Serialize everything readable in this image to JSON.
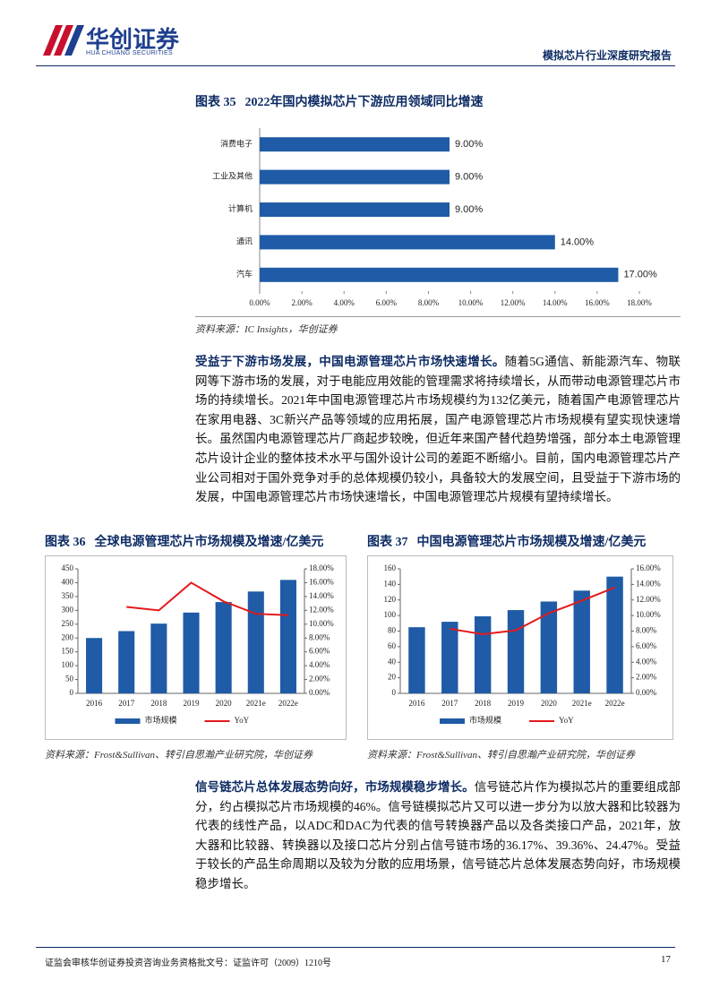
{
  "header": {
    "logo_name": "华创证券",
    "logo_subtitle": "HUA CHUANG SECURITIES",
    "report_title": "模拟芯片行业深度研究报告"
  },
  "chart_data": [
    {
      "type": "barh",
      "figure_label": "图表 35",
      "title": "2022年国内模拟芯片下游应用领域同比增速",
      "categories": [
        "消费电子",
        "工业及其他",
        "计算机",
        "通讯",
        "汽车"
      ],
      "values": [
        9,
        9,
        9,
        14,
        17
      ],
      "value_labels": [
        "9.00%",
        "9.00%",
        "9.00%",
        "14.00%",
        "17.00%"
      ],
      "color": "#1f5ba6",
      "xlim": [
        0,
        18
      ],
      "xticks": [
        {
          "value": 0,
          "label": "0.00%"
        },
        {
          "value": 2,
          "label": "2.00%"
        },
        {
          "value": 4,
          "label": "4.00%"
        },
        {
          "value": 6,
          "label": "6.00%"
        },
        {
          "value": 8,
          "label": "8.00%"
        },
        {
          "value": 10,
          "label": "10.00%"
        },
        {
          "value": 12,
          "label": "12.00%"
        },
        {
          "value": 14,
          "label": "14.00%"
        },
        {
          "value": 16,
          "label": "16.00%"
        },
        {
          "value": 18,
          "label": "18.00%"
        }
      ],
      "source": "资料来源：IC Insights，华创证券"
    },
    {
      "type": "combo",
      "figure_label": "图表 36",
      "title": "全球电源管理芯片市场规模及增速/亿美元",
      "categories": [
        "2016",
        "2017",
        "2018",
        "2019",
        "2020",
        "2021e",
        "2022e"
      ],
      "series": [
        {
          "name": "市场规模",
          "color": "#1f5ba6",
          "values": [
            200,
            225,
            252,
            292,
            330,
            368,
            410
          ]
        },
        {
          "name": "YoY",
          "color": "#e31a1c",
          "axis": "y2",
          "values": [
            null,
            12.5,
            12,
            16,
            13.3,
            11.5,
            11.3
          ]
        }
      ],
      "ylim": [
        0,
        450
      ],
      "yticks": [
        0,
        50,
        100,
        150,
        200,
        250,
        300,
        350,
        400,
        450
      ],
      "y2lim": [
        0,
        18
      ],
      "y2ticks": [
        {
          "value": 0,
          "label": "0.00%"
        },
        {
          "value": 2,
          "label": "2.00%"
        },
        {
          "value": 4,
          "label": "4.00%"
        },
        {
          "value": 6,
          "label": "6.00%"
        },
        {
          "value": 8,
          "label": "8.00%"
        },
        {
          "value": 10,
          "label": "10.00%"
        },
        {
          "value": 12,
          "label": "12.00%"
        },
        {
          "value": 14,
          "label": "14.00%"
        },
        {
          "value": 16,
          "label": "16.00%"
        },
        {
          "value": 18,
          "label": "18.00%"
        }
      ],
      "source": "资料来源：Frost&Sullivan、转引自思瀚产业研究院，华创证券"
    },
    {
      "type": "combo",
      "figure_label": "图表 37",
      "title": "中国电源管理芯片市场规模及增速/亿美元",
      "categories": [
        "2016",
        "2017",
        "2018",
        "2019",
        "2020",
        "2021e",
        "2022e"
      ],
      "series": [
        {
          "name": "市场规模",
          "color": "#1f5ba6",
          "values": [
            85,
            92,
            99,
            107,
            118,
            132,
            150
          ]
        },
        {
          "name": "YoY",
          "color": "#e31a1c",
          "axis": "y2",
          "values": [
            null,
            8.3,
            7.6,
            8.1,
            10.3,
            11.9,
            13.6
          ]
        }
      ],
      "ylim": [
        0,
        160
      ],
      "yticks": [
        0,
        20,
        40,
        60,
        80,
        100,
        120,
        140,
        160
      ],
      "y2lim": [
        0,
        16
      ],
      "y2ticks": [
        {
          "value": 0,
          "label": "0.00%"
        },
        {
          "value": 2,
          "label": "2.00%"
        },
        {
          "value": 4,
          "label": "4.00%"
        },
        {
          "value": 6,
          "label": "6.00%"
        },
        {
          "value": 8,
          "label": "8.00%"
        },
        {
          "value": 10,
          "label": "10.00%"
        },
        {
          "value": 12,
          "label": "12.00%"
        },
        {
          "value": 14,
          "label": "14.00%"
        },
        {
          "value": 16,
          "label": "16.00%"
        }
      ],
      "source": "资料来源：Frost&Sullivan、转引自思瀚产业研究院，华创证券"
    }
  ],
  "paragraphs": [
    {
      "lead": "受益于下游市场发展，中国电源管理芯片市场快速增长。",
      "text": "随着5G通信、新能源汽车、物联网等下游市场的发展，对于电能应用效能的管理需求将持续增长，从而带动电源管理芯片市场的持续增长。2021年中国电源管理芯片市场规模约为132亿美元，随着国产电源管理芯片在家用电器、3C新兴产品等领域的应用拓展，国产电源管理芯片市场规模有望实现快速增长。虽然国内电源管理芯片厂商起步较晚，但近年来国产替代趋势增强，部分本土电源管理芯片设计企业的整体技术水平与国外设计公司的差距不断缩小。目前，国内电源管理芯片产业公司相对于国外竞争对手的总体规模仍较小，具备较大的发展空间，且受益于下游市场的发展，中国电源管理芯片市场快速增长，中国电源管理芯片规模有望持续增长。"
    },
    {
      "lead": "信号链芯片总体发展态势向好，市场规模稳步增长。",
      "text": "信号链芯片作为模拟芯片的重要组成部分，约占模拟芯片市场规模的46%。信号链模拟芯片又可以进一步分为以放大器和比较器为代表的线性产品，以ADC和DAC为代表的信号转换器产品以及各类接口产品，2021年，放大器和比较器、转换器以及接口芯片分别占信号链市场的36.17%、39.36%、24.47%。受益于较长的产品生命周期以及较为分散的应用场景，信号链芯片总体发展态势向好，市场规模稳步增长。"
    }
  ],
  "footer": {
    "disclaimer": "证监会审核华创证券投资咨询业务资格批文号：证监许可（2009）1210号",
    "page_number": 17
  }
}
